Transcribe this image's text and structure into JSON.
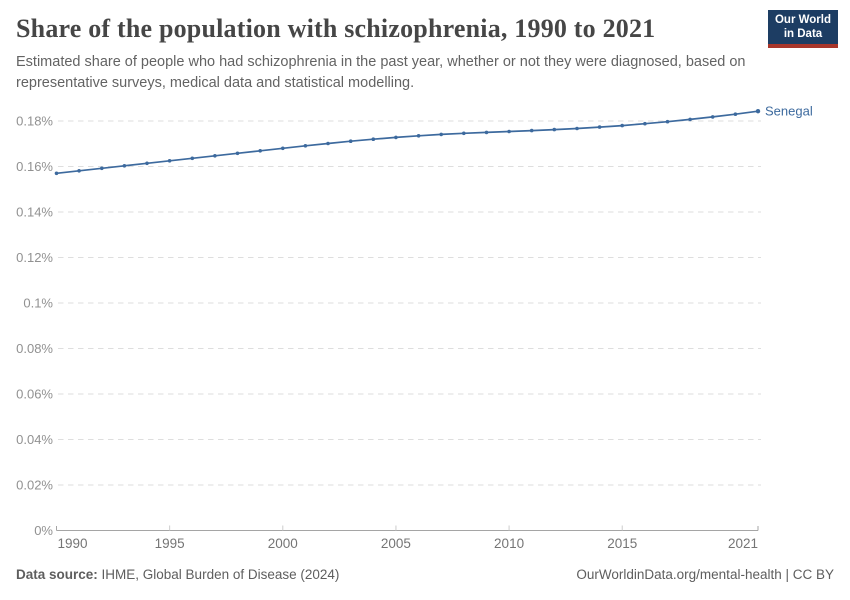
{
  "header": {
    "title": "Share of the population with schizophrenia, 1990 to 2021",
    "subtitle": "Estimated share of people who had schizophrenia in the past year, whether or not they were diagnosed, based on representative surveys, medical data and statistical modelling.",
    "logo_line1": "Our World",
    "logo_line2": "in Data"
  },
  "chart_data": {
    "type": "line",
    "title": "Share of the population with schizophrenia, 1990 to 2021",
    "entity_label": "Senegal",
    "unit": "%",
    "grid": "horizontal-dashed",
    "legend_position": "end-of-line",
    "xlim": [
      1990,
      2021
    ],
    "ylim": [
      0,
      0.19
    ],
    "xticks": [
      1990,
      1995,
      2000,
      2005,
      2010,
      2015,
      2021
    ],
    "yticks": [
      {
        "v": 0,
        "label": "0%"
      },
      {
        "v": 0.02,
        "label": "0.02%"
      },
      {
        "v": 0.04,
        "label": "0.04%"
      },
      {
        "v": 0.06,
        "label": "0.06%"
      },
      {
        "v": 0.08,
        "label": "0.08%"
      },
      {
        "v": 0.1,
        "label": "0.1%"
      },
      {
        "v": 0.12,
        "label": "0.12%"
      },
      {
        "v": 0.14,
        "label": "0.14%"
      },
      {
        "v": 0.16,
        "label": "0.16%"
      },
      {
        "v": 0.18,
        "label": "0.18%"
      }
    ],
    "series": [
      {
        "name": "Senegal",
        "color": "#3d6a9e",
        "x": [
          1990,
          1991,
          1992,
          1993,
          1994,
          1995,
          1996,
          1997,
          1998,
          1999,
          2000,
          2001,
          2002,
          2003,
          2004,
          2005,
          2006,
          2007,
          2008,
          2009,
          2010,
          2011,
          2012,
          2013,
          2014,
          2015,
          2016,
          2017,
          2018,
          2019,
          2020,
          2021
        ],
        "values": [
          0.157,
          0.1581,
          0.1592,
          0.1603,
          0.1614,
          0.1625,
          0.1636,
          0.1647,
          0.1658,
          0.1669,
          0.168,
          0.1691,
          0.1701,
          0.1711,
          0.172,
          0.1728,
          0.1735,
          0.1741,
          0.1746,
          0.175,
          0.1754,
          0.1758,
          0.1762,
          0.1767,
          0.1773,
          0.178,
          0.1788,
          0.1797,
          0.1807,
          0.1818,
          0.183,
          0.1843
        ]
      }
    ]
  },
  "colors": {
    "line": "#3d6a9e",
    "gridline": "#dedede",
    "axis": "#a5a5a5",
    "minor_tick": "#cccccc",
    "y_label": "#919191",
    "x_label": "#757575"
  },
  "footer": {
    "data_source_label": "Data source:",
    "data_source_value": " IHME, Global Burden of Disease (2024)",
    "license": "OurWorldinData.org/mental-health | CC BY"
  }
}
